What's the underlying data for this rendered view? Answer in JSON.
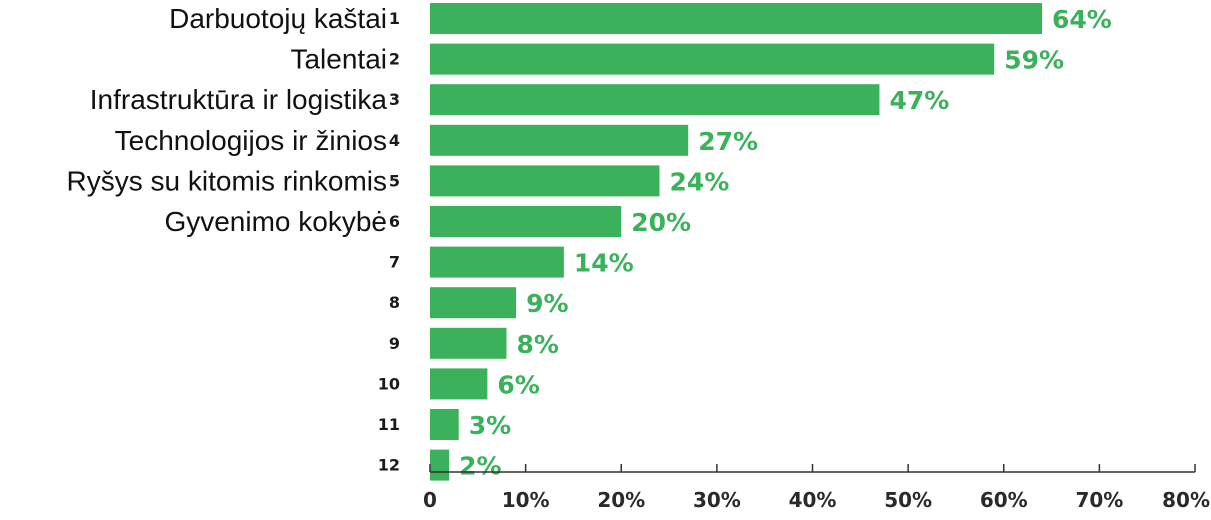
{
  "chart_data": {
    "type": "bar",
    "orientation": "horizontal",
    "ranks": [
      "1",
      "2",
      "3",
      "4",
      "5",
      "6",
      "7",
      "8",
      "9",
      "10",
      "11",
      "12"
    ],
    "categories": [
      "Darbuotojų kaštai",
      "Talentai",
      "Infrastruktūra ir logistika",
      "Technologijos ir žinios",
      "Ryšys su kitomis rinkomis",
      "Gyvenimo kokybė",
      "",
      "",
      "",
      "",
      "",
      ""
    ],
    "values": [
      64,
      59,
      47,
      27,
      24,
      20,
      14,
      9,
      8,
      6,
      3,
      2
    ],
    "value_labels": [
      "64%",
      "59%",
      "47%",
      "27%",
      "24%",
      "20%",
      "14%",
      "9%",
      "8%",
      "6%",
      "3%",
      "2%"
    ],
    "xlim": [
      0,
      80
    ],
    "x_ticks": [
      0,
      10,
      20,
      30,
      40,
      50,
      60,
      70,
      80
    ],
    "x_tick_labels": [
      "0",
      "10%",
      "20%",
      "30%",
      "40%",
      "50%",
      "60%",
      "70%",
      "80%"
    ],
    "grid": false,
    "colors": {
      "bar": "#3bb15b",
      "value_label": "#3bb15b",
      "axis": "#333333"
    }
  }
}
